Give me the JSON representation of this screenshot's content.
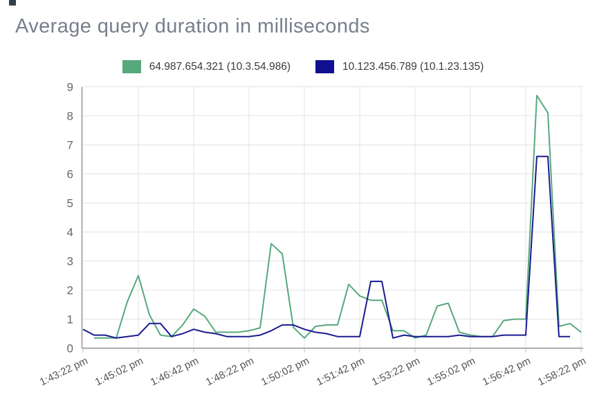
{
  "title": "Average query duration in milliseconds",
  "legend": {
    "items": [
      {
        "label": "64.987.654.321 (10.3.54.986)",
        "color": "#57a87c"
      },
      {
        "label": "10.123.456.789 (10.1.23.135)",
        "color": "#0f0f8f"
      }
    ]
  },
  "colors": {
    "green_series": "#57a87c",
    "navy_series": "#1a1a90",
    "grid": "#e3e3e3",
    "axis": "#8f8f8f",
    "title_text": "#767f8b",
    "tick_text": "#555555"
  },
  "chart_data": {
    "type": "line",
    "title": "Average query duration in milliseconds",
    "xlabel": "",
    "ylabel": "",
    "ylim": [
      0,
      9
    ],
    "y_ticks": [
      0,
      1,
      2,
      3,
      4,
      5,
      6,
      7,
      8,
      9
    ],
    "grid": true,
    "legend_position": "top",
    "x_label_rotation_deg": -26,
    "x_tick_labels": [
      "1:43:22 pm",
      "1:45:02 pm",
      "1:46:42 pm",
      "1:48:22 pm",
      "1:50:02 pm",
      "1:51:42 pm",
      "1:53:22 pm",
      "1:55:02 pm",
      "1:56:42 pm",
      "1:58:22 pm"
    ],
    "point_times": [
      "1:43:22 pm",
      "1:43:42 pm",
      "1:44:02 pm",
      "1:44:22 pm",
      "1:44:42 pm",
      "1:45:02 pm",
      "1:45:22 pm",
      "1:45:42 pm",
      "1:46:02 pm",
      "1:46:22 pm",
      "1:46:42 pm",
      "1:47:02 pm",
      "1:47:22 pm",
      "1:47:42 pm",
      "1:48:02 pm",
      "1:48:22 pm",
      "1:48:42 pm",
      "1:49:02 pm",
      "1:49:22 pm",
      "1:49:42 pm",
      "1:50:02 pm",
      "1:50:22 pm",
      "1:50:42 pm",
      "1:51:02 pm",
      "1:51:22 pm",
      "1:51:42 pm",
      "1:52:02 pm",
      "1:52:22 pm",
      "1:52:42 pm",
      "1:53:02 pm",
      "1:53:22 pm",
      "1:53:42 pm",
      "1:54:02 pm",
      "1:54:22 pm",
      "1:54:42 pm",
      "1:55:02 pm",
      "1:55:22 pm",
      "1:55:42 pm",
      "1:56:02 pm",
      "1:56:22 pm",
      "1:56:42 pm",
      "1:57:02 pm",
      "1:57:22 pm",
      "1:57:42 pm",
      "1:58:02 pm",
      "1:58:22 pm"
    ],
    "series": [
      {
        "name": "64.987.654.321 (10.3.54.986)",
        "color": "#57a87c",
        "values": [
          null,
          0.35,
          0.35,
          0.35,
          1.6,
          2.5,
          1.15,
          0.45,
          0.4,
          0.8,
          1.35,
          1.1,
          0.55,
          0.55,
          0.55,
          0.6,
          0.7,
          3.6,
          3.25,
          0.72,
          0.35,
          0.75,
          0.8,
          0.8,
          2.2,
          1.8,
          1.65,
          1.65,
          0.6,
          0.6,
          0.35,
          0.45,
          1.45,
          1.55,
          0.55,
          0.45,
          0.4,
          0.4,
          0.95,
          1.0,
          1.0,
          8.7,
          8.1,
          0.75,
          0.85,
          0.55
        ]
      },
      {
        "name": "10.123.456.789 (10.1.23.135)",
        "color": "#1a1a90",
        "values": [
          0.65,
          0.45,
          0.45,
          0.35,
          0.4,
          0.45,
          0.85,
          0.85,
          0.4,
          0.5,
          0.65,
          0.55,
          0.5,
          0.4,
          0.4,
          0.4,
          0.45,
          0.6,
          0.8,
          0.8,
          0.65,
          0.55,
          0.5,
          0.4,
          0.4,
          0.4,
          2.3,
          2.3,
          0.35,
          0.45,
          0.4,
          0.4,
          0.4,
          0.4,
          0.45,
          0.4,
          0.4,
          0.4,
          0.45,
          0.45,
          0.45,
          6.6,
          6.6,
          0.4,
          0.4,
          null
        ]
      }
    ]
  }
}
